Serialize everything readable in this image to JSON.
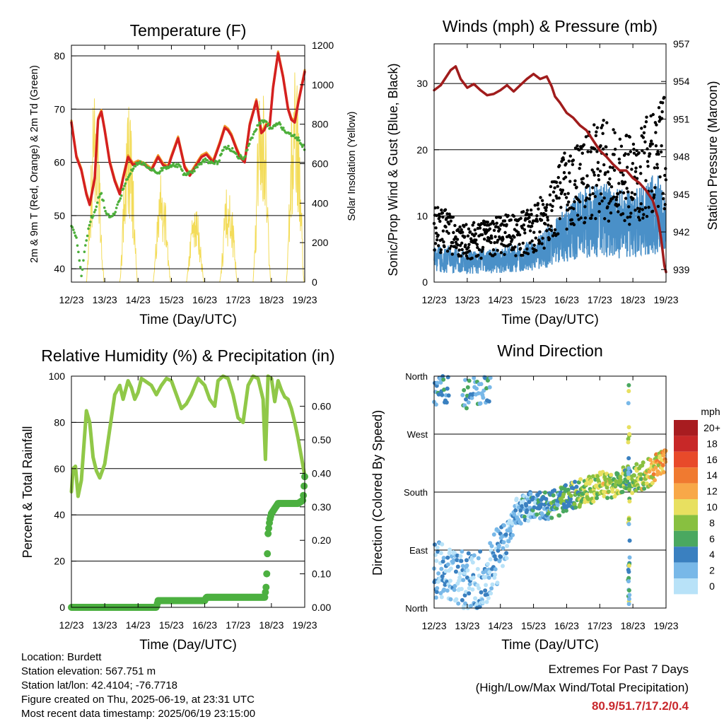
{
  "xticks": [
    "12/23",
    "13/23",
    "14/23",
    "15/23",
    "16/23",
    "17/23",
    "18/23",
    "19/23"
  ],
  "colors": {
    "temp": "#d42020",
    "temp9": "#f09a2a",
    "dew": "#4caf3a",
    "solar": "#f3dc5a",
    "gust": "#000000",
    "wind": "#4a90c8",
    "pressure": "#a01c1c",
    "rh": "#90c848",
    "precip": "#4cb040"
  },
  "chart_data": [
    {
      "type": "line",
      "title": "Temperature (F)",
      "xlabel": "Time (Day/UTC)",
      "ylabel": "2m & 9m T (Red, Orange) & 2m Td (Green)",
      "ylabel_right": "Solar Insolation (Yellow)",
      "xlim": [
        12,
        19
      ],
      "ylim": [
        37.5,
        82
      ],
      "ylim_right": [
        0,
        1200
      ],
      "yticks": [
        40,
        50,
        60,
        70,
        80
      ],
      "yticks_right": [
        0,
        200,
        400,
        600,
        800,
        1000,
        1200
      ],
      "grid": true,
      "series": [
        {
          "name": "2m T",
          "x": [
            12.0,
            12.15,
            12.3,
            12.45,
            12.55,
            12.7,
            12.8,
            12.9,
            13.0,
            13.15,
            13.3,
            13.45,
            13.55,
            13.7,
            13.85,
            14.0,
            14.2,
            14.4,
            14.6,
            14.75,
            14.9,
            15.0,
            15.2,
            15.4,
            15.55,
            15.75,
            15.9,
            16.05,
            16.25,
            16.45,
            16.6,
            16.7,
            16.8,
            16.95,
            17.05,
            17.2,
            17.35,
            17.55,
            17.7,
            17.78,
            17.85,
            17.95,
            18.05,
            18.2,
            18.35,
            18.5,
            18.6,
            18.7,
            18.8,
            18.9,
            19.0
          ],
          "y": [
            67.5,
            61,
            58.5,
            54,
            52,
            57,
            68,
            69.5,
            66,
            60,
            56.5,
            54,
            57,
            61,
            59.5,
            60,
            59.5,
            58.5,
            61,
            59.5,
            59,
            61,
            64.5,
            59,
            57.5,
            59.5,
            61,
            61.5,
            60,
            63.5,
            66.5,
            66,
            65,
            62.5,
            61,
            60,
            67,
            71.5,
            65.5,
            66,
            67,
            67,
            74,
            80.5,
            76,
            70,
            68,
            67.5,
            71,
            74,
            77
          ]
        },
        {
          "name": "2m Td",
          "x": [
            12.0,
            12.1,
            12.2,
            12.3,
            12.4,
            12.5,
            12.6,
            12.7,
            12.8,
            12.9,
            13.0,
            13.1,
            13.2,
            13.3,
            13.45,
            13.6,
            13.8,
            14.0,
            14.2,
            14.4,
            14.6,
            14.8,
            15.0,
            15.2,
            15.4,
            15.6,
            15.8,
            16.0,
            16.2,
            16.4,
            16.6,
            16.8,
            17.0,
            17.2,
            17.4,
            17.6,
            17.8,
            18.0,
            18.2,
            18.4,
            18.6,
            18.8,
            19.0
          ],
          "y": [
            48,
            47,
            44,
            38.5,
            44,
            47,
            49.5,
            50.5,
            53,
            54,
            51.5,
            50,
            49.5,
            50.5,
            53,
            56,
            58.5,
            60,
            59.5,
            58.5,
            58,
            59,
            59.5,
            59.5,
            57.5,
            58,
            59.5,
            60.5,
            60,
            60,
            63,
            62.5,
            61,
            61,
            64.5,
            67,
            68,
            66,
            67.5,
            66,
            65,
            64.5,
            62.5
          ]
        }
      ]
    },
    {
      "type": "line",
      "title": "Winds (mph) & Pressure (mb)",
      "xlabel": "Time (Day/UTC)",
      "ylabel": "Sonic/Prop Wind & Gust (Blue, Black)",
      "ylabel_right": "Station Pressure (Maroon)",
      "xlim": [
        12,
        19
      ],
      "ylim": [
        0,
        36
      ],
      "ylim_right": [
        938,
        957
      ],
      "yticks": [
        0,
        10,
        20,
        30
      ],
      "yticks_right": [
        939,
        942,
        945,
        948,
        951,
        954,
        957
      ],
      "grid": true,
      "series": [
        {
          "name": "Station Pressure",
          "x": [
            12.0,
            12.2,
            12.35,
            12.5,
            12.65,
            12.8,
            13.0,
            13.2,
            13.4,
            13.6,
            13.8,
            14.0,
            14.2,
            14.4,
            14.6,
            14.8,
            15.0,
            15.2,
            15.4,
            15.55,
            15.65,
            15.8,
            16.0,
            16.2,
            16.4,
            16.6,
            16.8,
            17.0,
            17.2,
            17.4,
            17.6,
            17.8,
            18.0,
            18.2,
            18.4,
            18.6,
            18.75,
            18.85,
            18.95,
            19.0
          ],
          "y": [
            953.3,
            953.7,
            954.3,
            954.9,
            955.2,
            954.2,
            953.5,
            953.8,
            953.3,
            952.9,
            953.0,
            953.3,
            953.7,
            953.2,
            953.7,
            954.2,
            954.6,
            954.2,
            954.4,
            953.6,
            952.8,
            952.3,
            951.5,
            951.1,
            950.5,
            950.1,
            949.3,
            948.5,
            948.0,
            947.4,
            946.9,
            946.9,
            946.3,
            945.9,
            945.3,
            944.5,
            943.2,
            941.5,
            939.3,
            938.8
          ]
        }
      ]
    },
    {
      "type": "line",
      "title": "Relative Humidity (%) & Precipitation (in)",
      "xlabel": "Time (Day/UTC)",
      "ylabel": "Percent & Total Rainfall",
      "xlim": [
        12,
        19
      ],
      "ylim": [
        0,
        100
      ],
      "ylim_right": [
        0,
        0.69
      ],
      "yticks": [
        0,
        20,
        40,
        60,
        80,
        100
      ],
      "yticks_right": [
        0.0,
        0.1,
        0.2,
        0.3,
        0.4,
        0.5,
        0.6
      ],
      "yticklabels_right": [
        "0.00",
        "0.10",
        "0.20",
        "0.30",
        "0.40",
        "0.50",
        "0.60"
      ],
      "grid": true,
      "series": [
        {
          "name": "Relative Humidity",
          "x": [
            12.0,
            12.05,
            12.12,
            12.2,
            12.3,
            12.45,
            12.55,
            12.65,
            12.75,
            12.85,
            13.0,
            13.15,
            13.3,
            13.45,
            13.55,
            13.7,
            13.8,
            13.9,
            14.0,
            14.1,
            14.2,
            14.4,
            14.55,
            14.7,
            14.85,
            15.0,
            15.1,
            15.3,
            15.45,
            15.6,
            15.8,
            16.0,
            16.15,
            16.3,
            16.4,
            16.55,
            16.7,
            16.85,
            17.0,
            17.15,
            17.3,
            17.45,
            17.6,
            17.75,
            17.82,
            17.9,
            18.0,
            18.1,
            18.2,
            18.3,
            18.4,
            18.5,
            18.6,
            18.7,
            18.8,
            18.9,
            19.0
          ],
          "y": [
            50,
            60,
            61,
            48,
            55,
            85,
            80,
            65,
            59,
            56,
            62,
            77,
            92,
            96,
            90,
            98,
            95,
            90,
            93,
            99,
            98,
            96,
            92,
            96,
            99,
            98,
            94,
            86,
            88,
            92,
            99,
            96,
            90,
            87,
            98,
            100,
            99,
            92,
            82,
            80,
            96,
            100,
            99,
            90,
            64,
            100,
            99,
            89,
            98,
            94,
            91,
            90,
            86,
            80,
            73,
            65,
            57
          ]
        },
        {
          "name": "Total Precipitation",
          "x": [
            12.0,
            12.5,
            13.0,
            13.5,
            14.0,
            14.4,
            14.55,
            14.6,
            15.0,
            15.5,
            16.0,
            16.05,
            16.5,
            17.0,
            17.5,
            17.8,
            17.84,
            17.86,
            17.88,
            17.9,
            17.95,
            18.0,
            18.2,
            18.5,
            18.8,
            18.95,
            19.0
          ],
          "y": [
            0.0,
            0.0,
            0.0,
            0.0,
            0.0,
            0.0,
            0.0,
            0.02,
            0.02,
            0.02,
            0.02,
            0.03,
            0.03,
            0.03,
            0.03,
            0.03,
            0.06,
            0.1,
            0.16,
            0.22,
            0.26,
            0.28,
            0.31,
            0.31,
            0.31,
            0.32,
            0.39
          ]
        }
      ]
    },
    {
      "type": "scatter",
      "title": "Wind Direction",
      "xlabel": "Time (Day/UTC)",
      "ylabel": "Direction (Colored By Speed)",
      "xlim": [
        12,
        19
      ],
      "ylim": [
        0,
        360
      ],
      "yticks": [
        0,
        90,
        180,
        270,
        360
      ],
      "yticklabels": [
        "North",
        "East",
        "South",
        "West",
        "North"
      ],
      "grid": true,
      "legend": {
        "title": "mph",
        "labels": [
          "20+",
          "18",
          "16",
          "14",
          "12",
          "10",
          "8",
          "6",
          "4",
          "2",
          "0"
        ],
        "colors": [
          "#a81c20",
          "#c82828",
          "#e84a2a",
          "#f07a30",
          "#f8a848",
          "#e8e060",
          "#88c040",
          "#4aa860",
          "#3a80c0",
          "#78b8e8",
          "#b8e2f8"
        ],
        "placement": "right"
      }
    }
  ],
  "info": {
    "location": "Location: Burdett",
    "elevation": "Station elevation: 567.751 m",
    "latlon": "Station lat/lon: 42.4104; -76.7718",
    "created": "Figure created on Thu, 2025-06-19, at 23:31 UTC",
    "timestamp": "Most recent data timestamp: 2025/06/19 23:15:00"
  },
  "extremes": {
    "title": "Extremes For Past 7 Days",
    "subtitle": "(High/Low/Max Wind/Total Precipitation)",
    "values": "80.9/51.7/17.2/0.4"
  }
}
